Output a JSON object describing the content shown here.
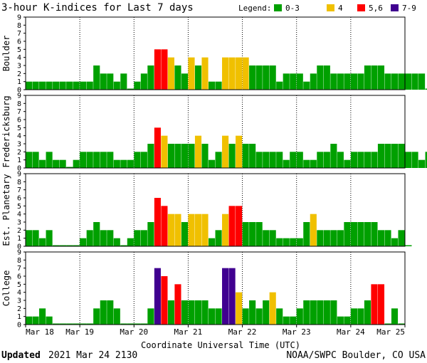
{
  "title": "3-hour K-indices for Last 7 days",
  "legend": {
    "label": "Legend:",
    "items": [
      {
        "label": "0-3",
        "color": "#00a000"
      },
      {
        "label": "4",
        "color": "#f0c000"
      },
      {
        "label": "5,6",
        "color": "#ff0000"
      },
      {
        "label": "7-9",
        "color": "#400090"
      }
    ]
  },
  "footer": {
    "updated_label": "Updated",
    "updated_value": "2021 Mar 24 2130",
    "source": "NOAA/SWPC Boulder, CO USA"
  },
  "chart_data": {
    "type": "bar",
    "xlabel": "Coordinate Universal Time (UTC)",
    "x_ticks": [
      "Mar 18",
      "Mar 19",
      "Mar 20",
      "Mar 21",
      "Mar 22",
      "Mar 23",
      "Mar 24",
      "Mar 25"
    ],
    "ylim": [
      0,
      9
    ],
    "y_ticks": [
      0,
      1,
      2,
      3,
      4,
      5,
      6,
      7,
      8,
      9
    ],
    "bins_per_day": 8,
    "series": [
      {
        "name": "Boulder",
        "values": [
          1,
          1,
          1,
          1,
          1,
          1,
          1,
          1,
          1,
          1,
          3,
          2,
          2,
          1,
          2,
          0,
          1,
          2,
          3,
          5,
          5,
          4,
          3,
          2,
          4,
          3,
          4,
          1,
          1,
          4,
          4,
          4,
          4,
          3,
          3,
          3,
          3,
          1,
          2,
          2,
          2,
          1,
          2,
          3,
          3,
          2,
          2,
          2,
          2,
          2,
          3,
          3,
          3,
          2,
          2,
          2,
          2,
          2,
          2,
          0
        ]
      },
      {
        "name": "Fredericksburg",
        "values": [
          2,
          2,
          1,
          2,
          1,
          1,
          0,
          1,
          2,
          2,
          2,
          2,
          2,
          1,
          1,
          1,
          2,
          2,
          3,
          5,
          4,
          3,
          3,
          3,
          3,
          4,
          3,
          1,
          2,
          4,
          3,
          4,
          3,
          3,
          2,
          2,
          2,
          2,
          1,
          2,
          2,
          1,
          1,
          2,
          2,
          3,
          2,
          1,
          2,
          2,
          2,
          2,
          3,
          3,
          3,
          3,
          2,
          2,
          1,
          2,
          0
        ]
      },
      {
        "name": "Est. Planetary",
        "values": [
          2,
          2,
          1,
          2,
          0,
          0,
          0,
          0,
          1,
          2,
          3,
          2,
          2,
          1,
          0,
          1,
          2,
          2,
          3,
          6,
          5,
          4,
          4,
          3,
          4,
          4,
          4,
          1,
          2,
          4,
          5,
          5,
          3,
          3,
          3,
          2,
          2,
          1,
          1,
          1,
          1,
          3,
          4,
          2,
          2,
          2,
          2,
          3,
          3,
          3,
          3,
          3,
          2,
          2,
          1,
          2,
          0
        ]
      },
      {
        "name": "College",
        "values": [
          1,
          1,
          2,
          1,
          0,
          0,
          0,
          0,
          0,
          0,
          2,
          3,
          3,
          2,
          0,
          0,
          0,
          0,
          2,
          7,
          6,
          3,
          5,
          3,
          3,
          3,
          3,
          2,
          2,
          7,
          7,
          4,
          2,
          3,
          2,
          3,
          4,
          2,
          1,
          1,
          2,
          3,
          3,
          3,
          3,
          3,
          1,
          1,
          2,
          2,
          3,
          5,
          5,
          0,
          2,
          0
        ]
      }
    ]
  }
}
